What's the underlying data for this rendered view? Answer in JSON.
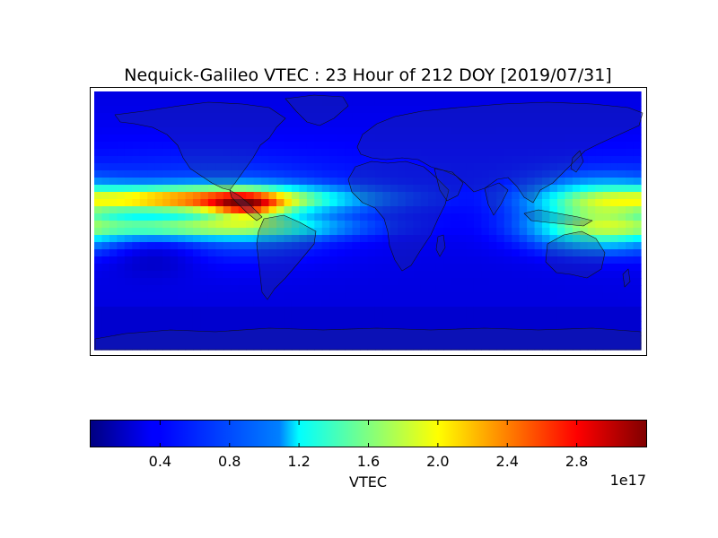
{
  "chart_data": {
    "type": "heatmap",
    "title": "Nequick-Galileo VTEC : 23 Hour of 212 DOY [2019/07/31]",
    "map_projection": "equirectangular world map with coastlines and country borders",
    "colormap": "jet",
    "colorbar": {
      "label": "VTEC",
      "range": [
        0,
        3.2e+17
      ],
      "ticks": [
        "0.4",
        "0.8",
        "1.2",
        "1.6",
        "2.0",
        "2.4",
        "2.8"
      ],
      "offset_label": "1e17"
    },
    "features": [
      {
        "region": "Equatorial anomaly crest off Central America (eastern Pacific)",
        "vtec": 3.1e+17
      },
      {
        "region": "Northern equatorial anomaly band across the Pacific",
        "vtec": 2.2e+17
      },
      {
        "region": "Southern equatorial anomaly band across the Pacific",
        "vtec": 1.6e+17
      },
      {
        "region": "Western Pacific near Philippines / Indonesia",
        "vtec": 1.2e+17
      },
      {
        "region": "Africa, Europe and Indian Ocean (night side)",
        "vtec": 2.5e+16
      },
      {
        "region": "Southern polar latitudes",
        "vtec": 4e+16
      }
    ]
  }
}
